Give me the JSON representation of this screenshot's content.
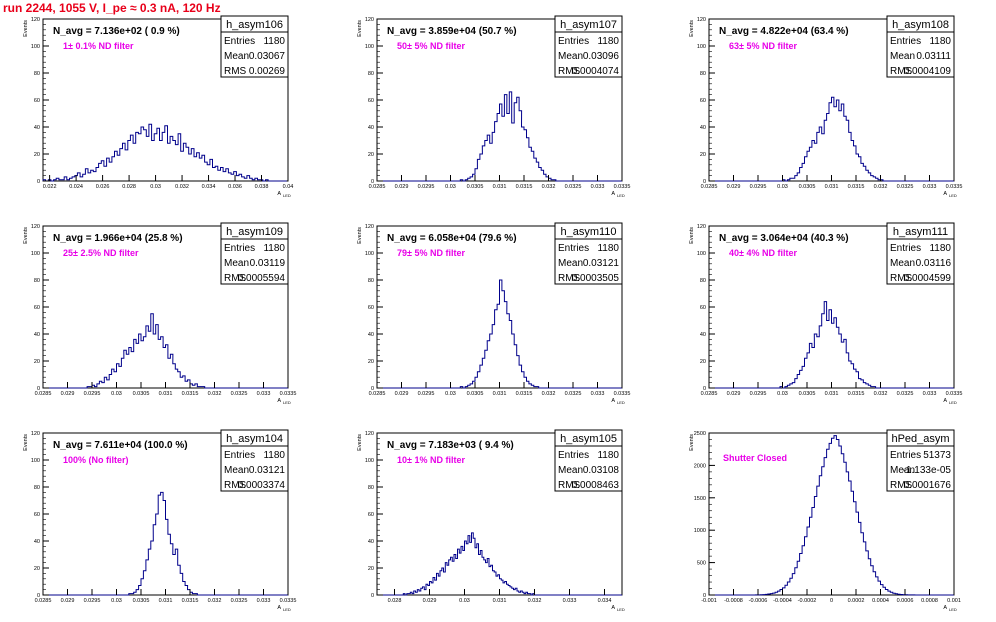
{
  "page": {
    "title": "run 2244,  1055 V, I_pe ≈ 0.3 nA, 120 Hz"
  },
  "colors": {
    "histogram": "#00008b",
    "annotation": "#e800e8",
    "title": "#e8001a",
    "frame": "#000000"
  },
  "chart_data": [
    {
      "type": "histogram",
      "title": "h_asym106",
      "nlabel": "N_avg = 7.136e+02 ( 0.9 %)",
      "annotation": "1± 0.1% ND filter",
      "stats": {
        "Entries": "1180",
        "Mean": "0.03067",
        "RMS": "0.00269"
      },
      "ylabel": "Events",
      "xlabel": "A",
      "xlabel_sub": "LED",
      "xlim": [
        0.0215,
        0.04
      ],
      "ylim": [
        0,
        120
      ],
      "xticks": [
        "0.022",
        "0.024",
        "0.026",
        "0.028",
        "0.03",
        "0.032",
        "0.034",
        "0.036",
        "0.038",
        "0.04"
      ],
      "yticks": [
        "0",
        "20",
        "40",
        "60",
        "80",
        "100",
        "120"
      ],
      "x_start": 0.0215,
      "bin_width": 0.0002,
      "values": [
        1,
        0,
        1,
        0,
        1,
        2,
        1,
        1,
        3,
        1,
        2,
        3,
        4,
        6,
        3,
        5,
        9,
        6,
        8,
        7,
        10,
        13,
        15,
        11,
        17,
        14,
        18,
        22,
        19,
        24,
        28,
        23,
        30,
        34,
        28,
        36,
        35,
        40,
        38,
        33,
        42,
        30,
        35,
        39,
        30,
        36,
        41,
        28,
        33,
        30,
        27,
        35,
        22,
        28,
        25,
        20,
        24,
        18,
        21,
        17,
        19,
        14,
        12,
        16,
        10,
        11,
        8,
        10,
        7,
        9,
        6,
        5,
        7,
        4,
        5,
        3,
        2,
        4,
        2,
        1,
        2,
        1,
        1,
        0,
        1,
        0,
        0,
        0,
        0,
        0,
        0,
        0
      ]
    },
    {
      "type": "histogram",
      "title": "h_asym107",
      "nlabel": "N_avg = 3.859e+04 (50.7 %)",
      "annotation": "50± 5% ND filter",
      "stats": {
        "Entries": "1180",
        "Mean": "0.03096",
        "RMS": "0.0004074"
      },
      "ylabel": "Events",
      "xlabel": "A",
      "xlabel_sub": "LED",
      "xlim": [
        0.0285,
        0.0335
      ],
      "ylim": [
        0,
        120
      ],
      "xticks": [
        "0.0285",
        "0.029",
        "0.0295",
        "0.03",
        "0.0305",
        "0.031",
        "0.0315",
        "0.032",
        "0.0325",
        "0.033",
        "0.0335"
      ],
      "yticks": [
        "0",
        "20",
        "40",
        "60",
        "80",
        "100",
        "120"
      ],
      "x_start": 0.0285,
      "bin_width": 5e-05,
      "values": [
        0,
        0,
        0,
        0,
        0,
        0,
        0,
        0,
        0,
        0,
        0,
        0,
        0,
        0,
        0,
        0,
        0,
        0,
        0,
        0,
        0,
        0,
        0,
        0,
        0,
        0,
        0,
        0,
        0,
        0,
        0,
        0,
        0,
        0,
        1,
        0,
        1,
        2,
        3,
        5,
        9,
        16,
        20,
        26,
        30,
        34,
        28,
        36,
        44,
        50,
        57,
        48,
        64,
        50,
        66,
        43,
        58,
        62,
        52,
        40,
        38,
        32,
        25,
        22,
        17,
        14,
        10,
        8,
        5,
        3,
        2,
        1,
        1,
        0,
        0,
        0,
        0,
        0,
        0,
        0,
        0,
        0,
        0,
        0,
        0,
        0,
        0,
        0,
        0,
        0,
        0,
        0,
        0,
        0,
        0,
        0,
        0,
        0,
        0,
        0
      ]
    },
    {
      "type": "histogram",
      "title": "h_asym108",
      "nlabel": "N_avg = 4.822e+04 (63.4 %)",
      "annotation": "63± 5% ND filter",
      "stats": {
        "Entries": "1180",
        "Mean": "0.03111",
        "RMS": "0.0004109"
      },
      "ylabel": "Events",
      "xlabel": "A",
      "xlabel_sub": "LED",
      "xlim": [
        0.0285,
        0.0335
      ],
      "ylim": [
        0,
        120
      ],
      "xticks": [
        "0.0285",
        "0.029",
        "0.0295",
        "0.03",
        "0.0305",
        "0.031",
        "0.0315",
        "0.032",
        "0.0325",
        "0.033",
        "0.0335"
      ],
      "yticks": [
        "0",
        "20",
        "40",
        "60",
        "80",
        "100",
        "120"
      ],
      "x_start": 0.0285,
      "bin_width": 5e-05,
      "values": [
        0,
        0,
        0,
        0,
        0,
        0,
        0,
        0,
        0,
        0,
        0,
        0,
        0,
        0,
        0,
        0,
        0,
        0,
        0,
        0,
        0,
        0,
        0,
        0,
        0,
        0,
        0,
        0,
        0,
        0,
        1,
        0,
        1,
        2,
        2,
        4,
        6,
        10,
        13,
        18,
        22,
        25,
        30,
        28,
        36,
        40,
        35,
        45,
        50,
        58,
        62,
        55,
        60,
        52,
        57,
        48,
        45,
        36,
        30,
        26,
        20,
        18,
        13,
        11,
        8,
        6,
        4,
        3,
        2,
        1,
        1,
        0,
        0,
        0,
        0,
        0,
        0,
        0,
        0,
        0,
        0,
        0,
        0,
        0,
        0,
        0,
        0,
        0,
        0,
        0,
        0,
        0,
        0,
        0,
        0,
        0,
        0,
        0,
        0,
        0
      ]
    },
    {
      "type": "histogram",
      "title": "h_asym109",
      "nlabel": "N_avg = 1.966e+04 (25.8 %)",
      "annotation": "25± 2.5% ND filter",
      "stats": {
        "Entries": "1180",
        "Mean": "0.03119",
        "RMS": "0.0005594"
      },
      "ylabel": "Events",
      "xlabel": "A",
      "xlabel_sub": "LED",
      "xlim": [
        0.0285,
        0.0335
      ],
      "ylim": [
        0,
        120
      ],
      "xticks": [
        "0.0285",
        "0.029",
        "0.0295",
        "0.03",
        "0.0305",
        "0.031",
        "0.0315",
        "0.032",
        "0.0325",
        "0.033",
        "0.0335"
      ],
      "yticks": [
        "0",
        "20",
        "40",
        "60",
        "80",
        "100",
        "120"
      ],
      "x_start": 0.0285,
      "bin_width": 5e-05,
      "values": [
        0,
        0,
        0,
        0,
        0,
        0,
        0,
        0,
        0,
        0,
        0,
        0,
        0,
        0,
        0,
        0,
        0,
        0,
        1,
        1,
        2,
        1,
        3,
        5,
        4,
        8,
        6,
        10,
        14,
        12,
        18,
        16,
        22,
        28,
        25,
        30,
        27,
        36,
        33,
        40,
        35,
        38,
        46,
        42,
        55,
        40,
        47,
        36,
        38,
        30,
        32,
        22,
        25,
        18,
        14,
        12,
        8,
        9,
        5,
        6,
        3,
        2,
        3,
        1,
        1,
        1,
        0,
        0,
        0,
        0,
        0,
        0,
        0,
        0,
        0,
        0,
        0,
        0,
        0,
        0,
        0,
        0,
        0,
        0,
        0,
        0,
        0,
        0,
        0,
        0,
        0,
        0,
        0,
        0,
        0,
        0,
        0,
        0,
        0,
        0
      ]
    },
    {
      "type": "histogram",
      "title": "h_asym110",
      "nlabel": "N_avg = 6.058e+04 (79.6 %)",
      "annotation": "79± 5% ND filter",
      "stats": {
        "Entries": "1180",
        "Mean": "0.03121",
        "RMS": "0.0003505"
      },
      "ylabel": "Events",
      "xlabel": "A",
      "xlabel_sub": "LED",
      "xlim": [
        0.0285,
        0.0335
      ],
      "ylim": [
        0,
        120
      ],
      "xticks": [
        "0.0285",
        "0.029",
        "0.0295",
        "0.03",
        "0.0305",
        "0.031",
        "0.0315",
        "0.032",
        "0.0325",
        "0.033",
        "0.0335"
      ],
      "yticks": [
        "0",
        "20",
        "40",
        "60",
        "80",
        "100",
        "120"
      ],
      "x_start": 0.0285,
      "bin_width": 5e-05,
      "values": [
        0,
        0,
        0,
        0,
        0,
        0,
        0,
        0,
        0,
        0,
        0,
        0,
        0,
        0,
        0,
        0,
        0,
        0,
        0,
        0,
        0,
        0,
        0,
        0,
        0,
        0,
        0,
        0,
        0,
        0,
        0,
        0,
        0,
        0,
        1,
        0,
        1,
        2,
        3,
        5,
        8,
        12,
        17,
        22,
        28,
        35,
        40,
        47,
        58,
        62,
        80,
        72,
        64,
        55,
        50,
        40,
        32,
        24,
        17,
        12,
        8,
        5,
        3,
        2,
        1,
        1,
        0,
        0,
        0,
        0,
        0,
        0,
        0,
        0,
        0,
        0,
        0,
        0,
        0,
        0,
        0,
        0,
        0,
        0,
        0,
        0,
        0,
        0,
        0,
        0,
        0,
        0,
        0,
        0,
        0,
        0,
        0,
        0,
        0,
        0
      ]
    },
    {
      "type": "histogram",
      "title": "h_asym111",
      "nlabel": "N_avg = 3.064e+04 (40.3 %)",
      "annotation": "40± 4% ND filter",
      "stats": {
        "Entries": "1180",
        "Mean": "0.03116",
        "RMS": "0.0004599"
      },
      "ylabel": "Events",
      "xlabel": "A",
      "xlabel_sub": "LED",
      "xlim": [
        0.0285,
        0.0335
      ],
      "ylim": [
        0,
        120
      ],
      "xticks": [
        "0.0285",
        "0.029",
        "0.0295",
        "0.03",
        "0.0305",
        "0.031",
        "0.0315",
        "0.032",
        "0.0325",
        "0.033",
        "0.0335"
      ],
      "yticks": [
        "0",
        "20",
        "40",
        "60",
        "80",
        "100",
        "120"
      ],
      "x_start": 0.0285,
      "bin_width": 5e-05,
      "values": [
        0,
        0,
        0,
        0,
        0,
        0,
        0,
        0,
        0,
        0,
        0,
        0,
        0,
        0,
        0,
        0,
        0,
        0,
        0,
        0,
        0,
        0,
        0,
        0,
        0,
        0,
        0,
        0,
        0,
        1,
        0,
        1,
        2,
        3,
        4,
        7,
        10,
        13,
        16,
        22,
        26,
        33,
        30,
        40,
        38,
        46,
        55,
        64,
        50,
        58,
        48,
        52,
        45,
        40,
        34,
        36,
        26,
        20,
        18,
        14,
        12,
        7,
        6,
        4,
        3,
        2,
        1,
        1,
        0,
        0,
        0,
        0,
        0,
        0,
        0,
        0,
        0,
        0,
        0,
        0,
        0,
        0,
        0,
        0,
        0,
        0,
        0,
        0,
        0,
        0,
        0,
        0,
        0,
        0,
        0,
        0,
        0,
        0,
        0,
        0
      ]
    },
    {
      "type": "histogram",
      "title": "h_asym104",
      "nlabel": "N_avg = 7.611e+04 (100.0 %)",
      "annotation": "100% (No filter)",
      "stats": {
        "Entries": "1180",
        "Mean": "0.03121",
        "RMS": "0.0003374"
      },
      "ylabel": "Events",
      "xlabel": "A",
      "xlabel_sub": "LED",
      "xlim": [
        0.0285,
        0.0335
      ],
      "ylim": [
        0,
        120
      ],
      "xticks": [
        "0.0285",
        "0.029",
        "0.0295",
        "0.03",
        "0.0305",
        "0.031",
        "0.0315",
        "0.032",
        "0.0325",
        "0.033",
        "0.0335"
      ],
      "yticks": [
        "0",
        "20",
        "40",
        "60",
        "80",
        "100",
        "120"
      ],
      "x_start": 0.0285,
      "bin_width": 5e-05,
      "values": [
        0,
        0,
        0,
        0,
        0,
        0,
        0,
        0,
        0,
        0,
        0,
        0,
        0,
        0,
        0,
        0,
        0,
        0,
        0,
        0,
        0,
        0,
        0,
        0,
        0,
        0,
        0,
        0,
        0,
        0,
        0,
        0,
        0,
        0,
        0,
        1,
        1,
        2,
        4,
        7,
        12,
        18,
        26,
        34,
        40,
        52,
        60,
        74,
        76,
        70,
        56,
        45,
        38,
        30,
        34,
        22,
        16,
        10,
        7,
        4,
        2,
        1,
        1,
        0,
        0,
        0,
        0,
        0,
        0,
        0,
        0,
        0,
        0,
        0,
        0,
        0,
        0,
        0,
        0,
        0,
        0,
        0,
        0,
        0,
        0,
        0,
        0,
        0,
        0,
        0,
        0,
        0,
        0,
        0,
        0,
        0,
        0,
        0,
        0,
        0
      ]
    },
    {
      "type": "histogram",
      "title": "h_asym105",
      "nlabel": "N_avg = 7.183e+03 ( 9.4 %)",
      "annotation": "10± 1% ND filter",
      "stats": {
        "Entries": "1180",
        "Mean": "0.03108",
        "RMS": "0.0008463"
      },
      "ylabel": "Events",
      "xlabel": "A",
      "xlabel_sub": "LED",
      "xlim": [
        0.0275,
        0.0345
      ],
      "ylim": [
        0,
        120
      ],
      "xticks": [
        "0.028",
        "0.029",
        "0.03",
        "0.031",
        "0.032",
        "0.033",
        "0.034"
      ],
      "yticks": [
        "0",
        "20",
        "40",
        "60",
        "80",
        "100",
        "120"
      ],
      "x_start": 0.0275,
      "bin_width": 5e-05,
      "values": [
        0,
        0,
        0,
        0,
        0,
        0,
        0,
        0,
        0,
        0,
        0,
        0,
        0,
        0,
        0,
        1,
        0,
        1,
        1,
        2,
        1,
        3,
        2,
        4,
        3,
        5,
        6,
        4,
        8,
        7,
        10,
        9,
        13,
        11,
        16,
        14,
        18,
        20,
        17,
        24,
        22,
        26,
        28,
        25,
        30,
        27,
        34,
        31,
        36,
        33,
        40,
        38,
        44,
        39,
        46,
        42,
        35,
        38,
        30,
        33,
        28,
        26,
        24,
        27,
        21,
        22,
        18,
        17,
        14,
        15,
        12,
        11,
        9,
        10,
        8,
        7,
        6,
        5,
        4,
        5,
        3,
        2,
        3,
        2,
        1,
        2,
        1,
        1,
        0,
        1,
        0,
        0,
        0,
        0,
        0,
        0,
        0,
        0,
        0,
        0,
        0,
        0,
        0,
        0,
        0,
        0,
        0,
        0,
        0,
        0,
        0,
        0,
        0,
        0,
        0,
        0,
        0,
        0,
        0,
        0,
        0,
        0,
        0,
        0,
        0,
        0,
        0,
        0,
        0,
        0,
        0,
        0,
        0,
        0,
        0,
        0,
        0,
        0,
        0,
        0
      ]
    },
    {
      "type": "histogram",
      "title": "hPed_asym",
      "nlabel": "",
      "annotation": "Shutter Closed",
      "stats": {
        "Entries": "51373",
        "Mean": "-1.133e-05",
        "RMS": "0.0001676"
      },
      "ylabel": "Events",
      "xlabel": "A",
      "xlabel_sub": "LED",
      "xlim": [
        -0.001,
        0.001
      ],
      "ylim": [
        0,
        2500
      ],
      "xticks": [
        "-0.001",
        "-0.0008",
        "-0.0006",
        "-0.0004",
        "-0.0002",
        "0",
        "0.0002",
        "0.0004",
        "0.0006",
        "0.0008",
        "0.001"
      ],
      "yticks": [
        "0",
        "500",
        "1000",
        "1500",
        "2000",
        "2500"
      ],
      "x_start": -0.001,
      "bin_width": 2e-05,
      "values": [
        0,
        0,
        0,
        0,
        0,
        0,
        0,
        0,
        0,
        0,
        0,
        0,
        0,
        0,
        0,
        0,
        0,
        0,
        0,
        1,
        2,
        4,
        6,
        10,
        15,
        22,
        30,
        42,
        60,
        85,
        110,
        150,
        200,
        260,
        330,
        420,
        520,
        640,
        760,
        900,
        1050,
        1200,
        1350,
        1520,
        1680,
        1840,
        1980,
        2120,
        2250,
        2340,
        2420,
        2460,
        2400,
        2300,
        2180,
        2050,
        1900,
        1760,
        1600,
        1440,
        1280,
        1120,
        960,
        820,
        680,
        560,
        450,
        360,
        280,
        215,
        160,
        120,
        85,
        60,
        42,
        28,
        18,
        12,
        8,
        5,
        3,
        2,
        1,
        1,
        0,
        0,
        0,
        0,
        0,
        0,
        0,
        0,
        0,
        0,
        0,
        0,
        0,
        0,
        0,
        0
      ]
    }
  ]
}
